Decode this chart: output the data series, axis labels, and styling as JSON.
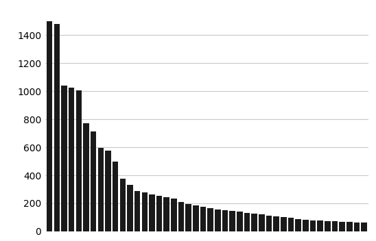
{
  "values": [
    1500,
    1480,
    1040,
    1025,
    1005,
    770,
    715,
    595,
    575,
    500,
    375,
    330,
    290,
    280,
    265,
    255,
    245,
    235,
    210,
    195,
    185,
    175,
    165,
    155,
    150,
    145,
    140,
    130,
    125,
    120,
    110,
    105,
    100,
    95,
    90,
    85,
    80,
    78,
    75,
    72,
    70,
    68,
    65,
    62
  ],
  "bar_color": "#1a1a1a",
  "background_color": "#ffffff",
  "grid_color": "#c8c8c8",
  "yticks": [
    0,
    200,
    400,
    600,
    800,
    1000,
    1200,
    1400
  ],
  "ylim": [
    0,
    1600
  ],
  "tick_fontsize": 10
}
